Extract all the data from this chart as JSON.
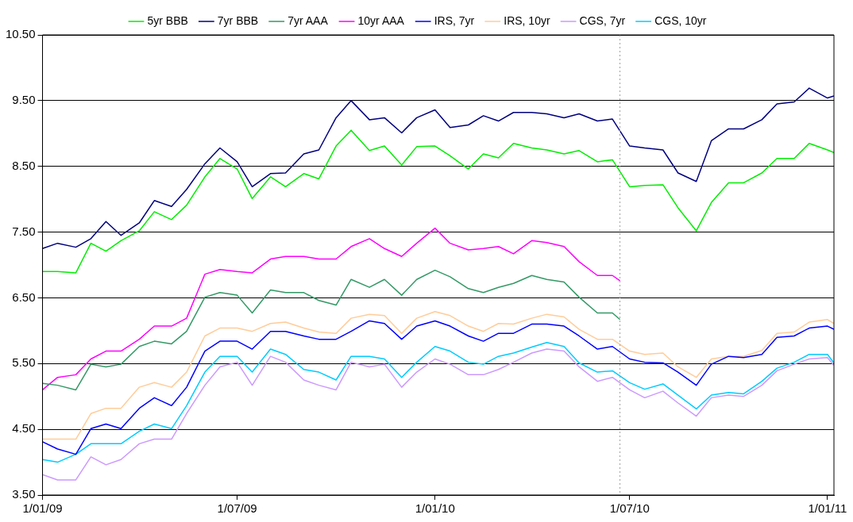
{
  "chart_data": {
    "type": "line",
    "marker": "none",
    "line_style": "solid",
    "grid": "y",
    "legend": "top",
    "x": [
      "2009-01-01",
      "2009-01-15",
      "2009-02-01",
      "2009-02-15",
      "2009-03-01",
      "2009-03-15",
      "2009-04-01",
      "2009-04-15",
      "2009-05-01",
      "2009-05-15",
      "2009-06-01",
      "2009-06-15",
      "2009-07-01",
      "2009-07-15",
      "2009-08-01",
      "2009-08-15",
      "2009-09-01",
      "2009-09-15",
      "2009-10-01",
      "2009-10-15",
      "2009-11-01",
      "2009-11-15",
      "2009-12-01",
      "2009-12-15",
      "2010-01-01",
      "2010-01-15",
      "2010-02-01",
      "2010-02-15",
      "2010-03-01",
      "2010-03-15",
      "2010-04-01",
      "2010-04-15",
      "2010-05-01",
      "2010-05-15",
      "2010-06-01",
      "2010-06-15",
      "2010-07-01",
      "2010-07-15",
      "2010-08-01",
      "2010-08-15",
      "2010-09-01",
      "2010-09-15",
      "2010-10-01",
      "2010-10-15",
      "2010-11-01",
      "2010-11-15",
      "2010-12-01",
      "2010-12-15",
      "2011-01-01",
      "2011-01-07"
    ],
    "xlim": [
      "2009-01-01",
      "2011-01-07"
    ],
    "xticks": [
      {
        "value": "2009-01-01",
        "label": "1/01/09"
      },
      {
        "value": "2009-07-01",
        "label": "1/07/09"
      },
      {
        "value": "2010-01-01",
        "label": "1/01/10"
      },
      {
        "value": "2010-07-01",
        "label": "1/07/10"
      },
      {
        "value": "2011-01-01",
        "label": "1/01/11"
      }
    ],
    "ylim": [
      3.5,
      10.5
    ],
    "yticks": [
      {
        "value": 3.5,
        "label": "3.50"
      },
      {
        "value": 4.5,
        "label": "4.50"
      },
      {
        "value": 5.5,
        "label": "5.50"
      },
      {
        "value": 6.5,
        "label": "6.50"
      },
      {
        "value": 7.5,
        "label": "7.50"
      },
      {
        "value": 8.5,
        "label": "8.50"
      },
      {
        "value": 9.5,
        "label": "9.50"
      },
      {
        "value": 10.5,
        "label": "10.50"
      }
    ],
    "ref_lines": [
      {
        "axis": "x",
        "value": "2010-06-22",
        "color": "#a0a0a0",
        "line_style": "dotted"
      }
    ],
    "series": [
      {
        "name": "5yr BBB",
        "color": "#00ee00",
        "values": [
          6.9,
          6.9,
          6.88,
          7.33,
          7.21,
          7.37,
          7.52,
          7.81,
          7.69,
          7.91,
          8.34,
          8.62,
          8.46,
          8.01,
          8.34,
          8.19,
          8.39,
          8.31,
          8.81,
          9.05,
          8.74,
          8.81,
          8.52,
          8.8,
          8.81,
          8.66,
          8.46,
          8.69,
          8.63,
          8.85,
          8.78,
          8.75,
          8.69,
          8.74,
          8.57,
          8.6,
          8.19,
          8.21,
          8.22,
          7.87,
          7.52,
          7.95,
          8.25,
          8.25,
          8.4,
          8.62,
          8.62,
          8.85,
          8.75,
          8.71
        ]
      },
      {
        "name": "7yr BBB",
        "color": "#000080",
        "values": [
          7.25,
          7.33,
          7.27,
          7.4,
          7.66,
          7.45,
          7.64,
          7.98,
          7.89,
          8.15,
          8.54,
          8.78,
          8.57,
          8.19,
          8.39,
          8.4,
          8.69,
          8.75,
          9.24,
          9.5,
          9.21,
          9.24,
          9.01,
          9.24,
          9.36,
          9.09,
          9.13,
          9.27,
          9.19,
          9.32,
          9.32,
          9.3,
          9.24,
          9.3,
          9.19,
          9.22,
          8.81,
          8.78,
          8.75,
          8.4,
          8.27,
          8.89,
          9.07,
          9.07,
          9.21,
          9.45,
          9.48,
          9.69,
          9.54,
          9.57
        ]
      },
      {
        "name": "7yr AAA",
        "color": "#339966",
        "x": [
          "2009-01-01",
          "2009-01-15",
          "2009-02-01",
          "2009-02-15",
          "2009-03-01",
          "2009-03-15",
          "2009-04-01",
          "2009-04-15",
          "2009-05-01",
          "2009-05-15",
          "2009-06-01",
          "2009-06-15",
          "2009-07-01",
          "2009-07-15",
          "2009-08-01",
          "2009-08-15",
          "2009-09-01",
          "2009-09-15",
          "2009-10-01",
          "2009-10-15",
          "2009-11-01",
          "2009-11-15",
          "2009-12-01",
          "2009-12-15",
          "2010-01-01",
          "2010-01-15",
          "2010-02-01",
          "2010-02-15",
          "2010-03-01",
          "2010-03-15",
          "2010-04-01",
          "2010-04-15",
          "2010-05-01",
          "2010-05-15",
          "2010-06-01",
          "2010-06-15",
          "2010-06-22"
        ],
        "values": [
          5.2,
          5.17,
          5.1,
          5.49,
          5.45,
          5.49,
          5.76,
          5.84,
          5.8,
          5.99,
          6.51,
          6.58,
          6.54,
          6.27,
          6.62,
          6.58,
          6.58,
          6.46,
          6.39,
          6.78,
          6.66,
          6.78,
          6.54,
          6.78,
          6.92,
          6.82,
          6.64,
          6.58,
          6.66,
          6.72,
          6.84,
          6.78,
          6.74,
          6.51,
          6.27,
          6.27,
          6.17
        ]
      },
      {
        "name": "10yr AAA",
        "color": "#ff00ff",
        "x": [
          "2009-01-01",
          "2009-01-15",
          "2009-02-01",
          "2009-02-15",
          "2009-03-01",
          "2009-03-15",
          "2009-04-01",
          "2009-04-15",
          "2009-05-01",
          "2009-05-15",
          "2009-06-01",
          "2009-06-15",
          "2009-07-01",
          "2009-07-15",
          "2009-08-01",
          "2009-08-15",
          "2009-09-01",
          "2009-09-15",
          "2009-10-01",
          "2009-10-15",
          "2009-11-01",
          "2009-11-15",
          "2009-12-01",
          "2009-12-15",
          "2010-01-01",
          "2010-01-15",
          "2010-02-01",
          "2010-02-15",
          "2010-03-01",
          "2010-03-15",
          "2010-04-01",
          "2010-04-15",
          "2010-05-01",
          "2010-05-15",
          "2010-06-01",
          "2010-06-15",
          "2010-06-22"
        ],
        "values": [
          5.1,
          5.29,
          5.33,
          5.57,
          5.69,
          5.69,
          5.87,
          6.07,
          6.07,
          6.19,
          6.86,
          6.93,
          6.9,
          6.88,
          7.09,
          7.13,
          7.13,
          7.09,
          7.09,
          7.28,
          7.4,
          7.25,
          7.13,
          7.33,
          7.56,
          7.33,
          7.23,
          7.25,
          7.28,
          7.17,
          7.37,
          7.34,
          7.28,
          7.05,
          6.84,
          6.84,
          6.76
        ]
      },
      {
        "name": "IRS, 7yr",
        "color": "#0000ff",
        "values": [
          4.31,
          4.2,
          4.12,
          4.51,
          4.58,
          4.51,
          4.82,
          4.98,
          4.86,
          5.14,
          5.69,
          5.84,
          5.84,
          5.72,
          5.99,
          5.99,
          5.92,
          5.87,
          5.87,
          5.99,
          6.15,
          6.11,
          5.87,
          6.07,
          6.15,
          6.07,
          5.92,
          5.84,
          5.96,
          5.96,
          6.1,
          6.1,
          6.07,
          5.92,
          5.72,
          5.76,
          5.57,
          5.52,
          5.51,
          5.37,
          5.17,
          5.49,
          5.61,
          5.59,
          5.64,
          5.9,
          5.92,
          6.04,
          6.07,
          6.02
        ]
      },
      {
        "name": "IRS, 10yr",
        "color": "#ffcc99",
        "values": [
          4.35,
          4.35,
          4.35,
          4.74,
          4.82,
          4.82,
          5.14,
          5.21,
          5.14,
          5.37,
          5.92,
          6.04,
          6.04,
          5.99,
          6.11,
          6.13,
          6.04,
          5.98,
          5.96,
          6.19,
          6.25,
          6.23,
          5.96,
          6.19,
          6.29,
          6.23,
          6.07,
          5.99,
          6.11,
          6.1,
          6.19,
          6.25,
          6.21,
          6.02,
          5.87,
          5.87,
          5.69,
          5.64,
          5.66,
          5.45,
          5.29,
          5.57,
          5.61,
          5.61,
          5.7,
          5.96,
          5.98,
          6.13,
          6.17,
          6.11
        ]
      },
      {
        "name": "CGS, 7yr",
        "color": "#cc99ff",
        "values": [
          3.81,
          3.73,
          3.73,
          4.08,
          3.96,
          4.04,
          4.28,
          4.35,
          4.35,
          4.74,
          5.17,
          5.45,
          5.52,
          5.17,
          5.61,
          5.52,
          5.25,
          5.17,
          5.1,
          5.52,
          5.45,
          5.49,
          5.14,
          5.37,
          5.57,
          5.49,
          5.33,
          5.33,
          5.41,
          5.52,
          5.66,
          5.72,
          5.69,
          5.45,
          5.23,
          5.29,
          5.1,
          4.98,
          5.08,
          4.9,
          4.7,
          4.98,
          5.02,
          5.0,
          5.17,
          5.39,
          5.49,
          5.57,
          5.59,
          5.47
        ]
      },
      {
        "name": "CGS, 10yr",
        "color": "#00ccff",
        "values": [
          4.04,
          4.0,
          4.12,
          4.28,
          4.28,
          4.28,
          4.47,
          4.58,
          4.51,
          4.86,
          5.37,
          5.61,
          5.61,
          5.37,
          5.72,
          5.64,
          5.41,
          5.37,
          5.25,
          5.61,
          5.61,
          5.57,
          5.29,
          5.52,
          5.76,
          5.69,
          5.52,
          5.49,
          5.61,
          5.66,
          5.75,
          5.82,
          5.76,
          5.51,
          5.37,
          5.39,
          5.21,
          5.11,
          5.19,
          5.02,
          4.81,
          5.02,
          5.06,
          5.04,
          5.23,
          5.43,
          5.52,
          5.64,
          5.64,
          5.51
        ]
      }
    ]
  }
}
